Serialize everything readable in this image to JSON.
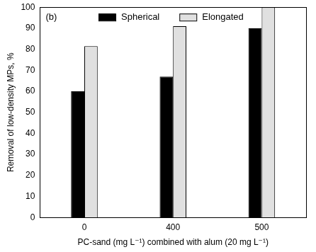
{
  "chart_data": {
    "type": "bar",
    "annotations": [
      "(b)"
    ],
    "x_label": "PC-sand (mg L⁻¹) combined with alum (20 mg L⁻¹)",
    "y_label": "Removal of low-density MPs, %",
    "categories": [
      "0",
      "400",
      "500"
    ],
    "series": [
      {
        "name": "Spherical",
        "color": "#000000",
        "values": [
          60,
          67,
          90
        ]
      },
      {
        "name": "Elongated",
        "color": "#e0e0e0",
        "values": [
          81.5,
          91,
          100
        ]
      }
    ],
    "ylim": [
      0,
      100
    ],
    "yticks": [
      0,
      10,
      20,
      30,
      40,
      50,
      60,
      70,
      80,
      90,
      100
    ],
    "grid": false,
    "legend": "top"
  }
}
